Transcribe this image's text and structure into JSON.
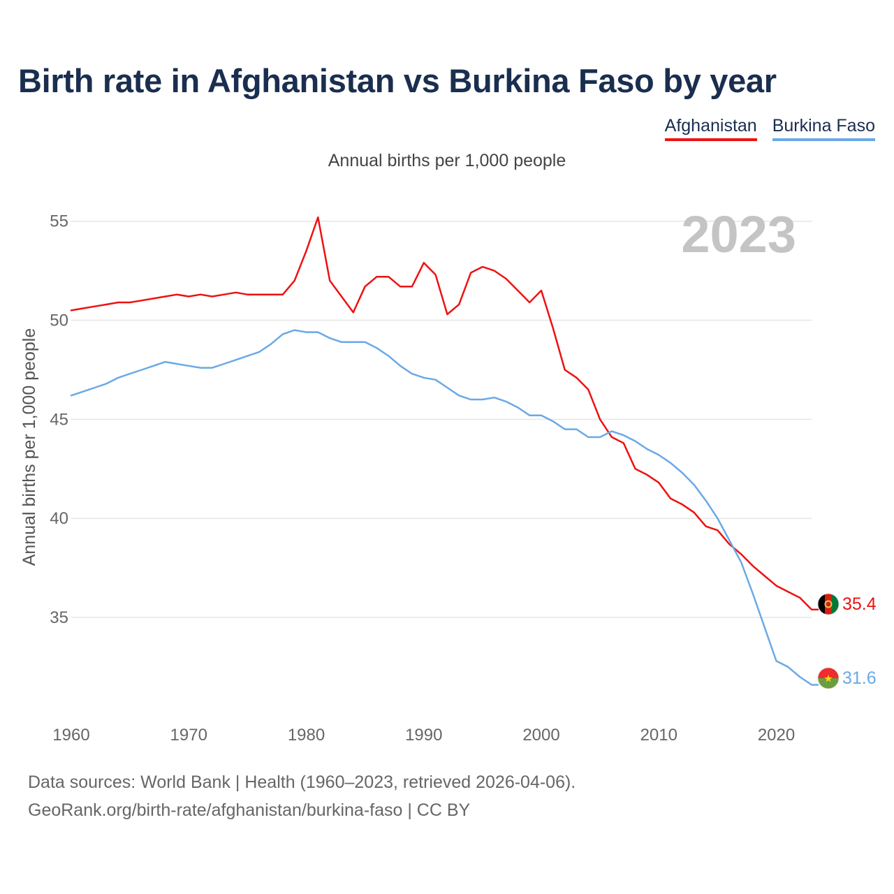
{
  "header": {
    "title": "Birth rate in Afghanistan vs Burkina Faso by year",
    "subtitle": "Annual births per 1,000 people"
  },
  "legend": [
    {
      "label": "Afghanistan",
      "color": "#ee1111"
    },
    {
      "label": "Burkina Faso",
      "color": "#6aa9e6"
    }
  ],
  "footer": {
    "source_line1": "Data sources: World Bank | Health (1960–2023, retrieved 2026-04-06).",
    "source_line2": "GeoRank.org/birth-rate/afghanistan/burkina-faso | CC BY"
  },
  "chart_data": {
    "type": "line",
    "title": "Birth rate in Afghanistan vs Burkina Faso by year",
    "xlabel": "",
    "ylabel": "Annual births per 1,000 people",
    "year_label": "2023",
    "xlim": [
      1960,
      2023
    ],
    "ylim": [
      30.7,
      57
    ],
    "x_ticks": [
      1960,
      1970,
      1980,
      1990,
      2000,
      2010,
      2020
    ],
    "y_ticks": [
      35,
      40,
      45,
      50,
      55
    ],
    "grid": true,
    "x": [
      1960,
      1961,
      1962,
      1963,
      1964,
      1965,
      1966,
      1967,
      1968,
      1969,
      1970,
      1971,
      1972,
      1973,
      1974,
      1975,
      1976,
      1977,
      1978,
      1979,
      1980,
      1981,
      1982,
      1983,
      1984,
      1985,
      1986,
      1987,
      1988,
      1989,
      1990,
      1991,
      1992,
      1993,
      1994,
      1995,
      1996,
      1997,
      1998,
      1999,
      2000,
      2001,
      2002,
      2003,
      2004,
      2005,
      2006,
      2007,
      2008,
      2009,
      2010,
      2011,
      2012,
      2013,
      2014,
      2015,
      2016,
      2017,
      2018,
      2019,
      2020,
      2021,
      2022,
      2023
    ],
    "series": [
      {
        "name": "Afghanistan",
        "color": "#ee1111",
        "end_label": "35.4",
        "values": [
          50.5,
          50.6,
          50.7,
          50.8,
          50.9,
          50.9,
          51.0,
          51.1,
          51.2,
          51.3,
          51.2,
          51.3,
          51.2,
          51.3,
          51.4,
          51.3,
          51.3,
          51.3,
          51.3,
          52.0,
          53.5,
          55.2,
          52.0,
          51.2,
          50.4,
          51.7,
          52.2,
          52.2,
          51.7,
          51.7,
          52.9,
          52.3,
          50.3,
          50.8,
          52.4,
          52.7,
          52.5,
          52.1,
          51.5,
          50.9,
          51.5,
          49.6,
          47.5,
          47.1,
          46.5,
          45.0,
          44.1,
          43.8,
          42.5,
          42.2,
          41.8,
          41.0,
          40.7,
          40.3,
          39.6,
          39.4,
          38.7,
          38.2,
          37.6,
          37.1,
          36.6,
          36.3,
          36.0,
          35.4
        ]
      },
      {
        "name": "Burkina Faso",
        "color": "#6aa9e6",
        "end_label": "31.6",
        "values": [
          46.2,
          46.4,
          46.6,
          46.8,
          47.1,
          47.3,
          47.5,
          47.7,
          47.9,
          47.8,
          47.7,
          47.6,
          47.6,
          47.8,
          48.0,
          48.2,
          48.4,
          48.8,
          49.3,
          49.5,
          49.4,
          49.4,
          49.1,
          48.9,
          48.9,
          48.9,
          48.6,
          48.2,
          47.7,
          47.3,
          47.1,
          47.0,
          46.6,
          46.2,
          46.0,
          46.0,
          46.1,
          45.9,
          45.6,
          45.2,
          45.2,
          44.9,
          44.5,
          44.5,
          44.1,
          44.1,
          44.4,
          44.2,
          43.9,
          43.5,
          43.2,
          42.8,
          42.3,
          41.7,
          40.9,
          40.0,
          38.9,
          37.8,
          36.2,
          34.5,
          32.8,
          32.5,
          32.0,
          31.6
        ]
      }
    ]
  }
}
